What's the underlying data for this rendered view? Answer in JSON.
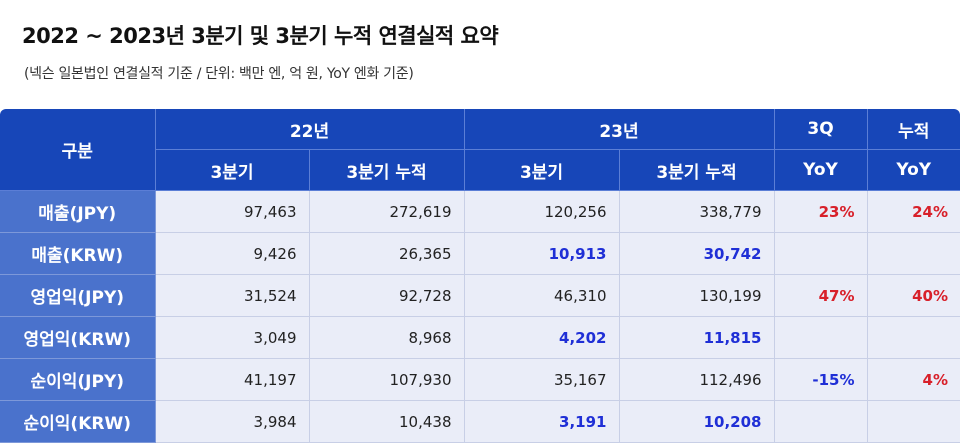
{
  "title": "2022 ~ 2023년 3분기 및 3분기 누적 연결실적 요약",
  "subtitle": "(넥슨 일본법인 연결실적 기준 / 단위: 백만 엔, 억 원, YoY 엔화 기준)",
  "header": {
    "category": "구분",
    "year22": "22년",
    "year23": "23년",
    "q3": "3Q",
    "cumulative": "누적",
    "quarter": "3분기",
    "quarter_cum": "3분기 누적",
    "yoy": "YoY"
  },
  "rows": [
    {
      "label": "매출(JPY)",
      "v22q": "97,463",
      "v22c": "272,619",
      "v23q": "120,256",
      "v23c": "338,779",
      "yoy_q": "23%",
      "yoy_c": "24%"
    },
    {
      "label": "매출(KRW)",
      "v22q": "9,426",
      "v22c": "26,365",
      "v23q": "10,913",
      "v23c": "30,742",
      "yoy_q": "",
      "yoy_c": ""
    },
    {
      "label": "영업익(JPY)",
      "v22q": "31,524",
      "v22c": "92,728",
      "v23q": "46,310",
      "v23c": "130,199",
      "yoy_q": "47%",
      "yoy_c": "40%"
    },
    {
      "label": "영업익(KRW)",
      "v22q": "3,049",
      "v22c": "8,968",
      "v23q": "4,202",
      "v23c": "11,815",
      "yoy_q": "",
      "yoy_c": ""
    },
    {
      "label": "순이익(JPY)",
      "v22q": "41,197",
      "v22c": "107,930",
      "v23q": "35,167",
      "v23c": "112,496",
      "yoy_q": "-15%",
      "yoy_c": "4%"
    },
    {
      "label": "순이익(KRW)",
      "v22q": "3,984",
      "v22c": "10,438",
      "v23q": "3,191",
      "v23c": "10,208",
      "yoy_q": "",
      "yoy_c": ""
    }
  ]
}
